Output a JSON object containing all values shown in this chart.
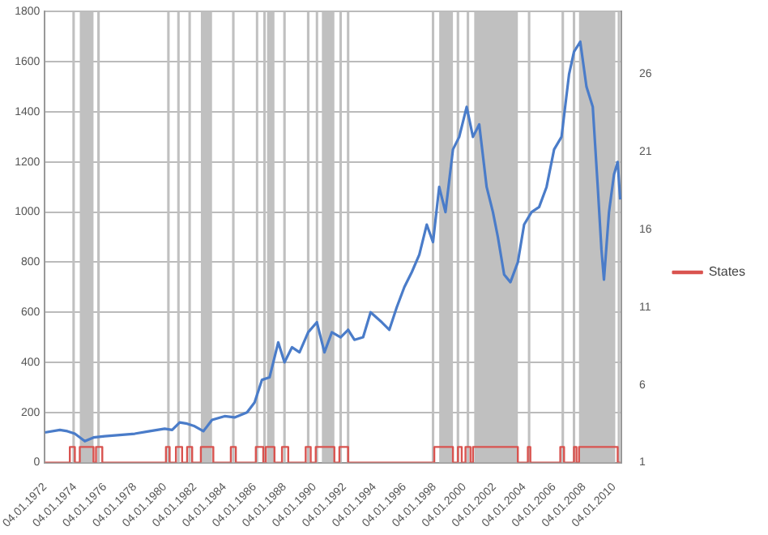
{
  "chart_data": {
    "type": "line",
    "xlim": [
      "1972-01",
      "2010-07"
    ],
    "xticks": [
      {
        "value": "1972-01-04",
        "label": "04.01.1972"
      },
      {
        "value": "1974-01-04",
        "label": "04.01.1974"
      },
      {
        "value": "1976-01-04",
        "label": "04.01.1976"
      },
      {
        "value": "1978-01-04",
        "label": "04.01.1978"
      },
      {
        "value": "1980-01-04",
        "label": "04.01.1980"
      },
      {
        "value": "1982-01-04",
        "label": "04.01.1982"
      },
      {
        "value": "1984-01-04",
        "label": "04.01.1984"
      },
      {
        "value": "1986-01-04",
        "label": "04.01.1986"
      },
      {
        "value": "1988-01-04",
        "label": "04.01.1988"
      },
      {
        "value": "1990-01-04",
        "label": "04.01.1990"
      },
      {
        "value": "1992-01-04",
        "label": "04.01.1992"
      },
      {
        "value": "1994-01-04",
        "label": "04.01.1994"
      },
      {
        "value": "1996-01-04",
        "label": "04.01.1996"
      },
      {
        "value": "1998-01-04",
        "label": "04.01.1998"
      },
      {
        "value": "2000-01-04",
        "label": "04.01.2000"
      },
      {
        "value": "2002-01-04",
        "label": "04.01.2002"
      },
      {
        "value": "2004-01-04",
        "label": "04.01.2004"
      },
      {
        "value": "2006-01-04",
        "label": "04.01.2006"
      },
      {
        "value": "2008-01-04",
        "label": "04.01.2008"
      },
      {
        "value": "2010-01-04",
        "label": "04.01.2010"
      }
    ],
    "ylim": [
      0,
      1800
    ],
    "yticks": [
      0,
      200,
      400,
      600,
      800,
      1000,
      1200,
      1400,
      1600,
      1800
    ],
    "y2lim": [
      1,
      30
    ],
    "y2ticks": [
      1,
      6,
      11,
      16,
      21,
      26
    ],
    "grid": "y",
    "legend": "right",
    "marker": "none",
    "line_style": "solid",
    "series": [
      {
        "color": "#4a7cc9",
        "x": [
          "1972-01",
          "1973-01",
          "1973-07",
          "1974-01",
          "1974-09",
          "1975-04",
          "1976-01",
          "1977-01",
          "1978-01",
          "1979-01",
          "1980-01",
          "1980-07",
          "1981-01",
          "1981-07",
          "1982-01",
          "1982-08",
          "1983-03",
          "1984-01",
          "1984-09",
          "1985-07",
          "1986-01",
          "1986-07",
          "1987-01",
          "1987-08",
          "1988-01",
          "1988-07",
          "1989-01",
          "1989-08",
          "1990-03",
          "1990-09",
          "1991-03",
          "1991-10",
          "1992-04",
          "1992-09",
          "1993-04",
          "1993-10",
          "1994-07",
          "1995-01",
          "1995-07",
          "1996-01",
          "1996-07",
          "1997-01",
          "1997-07",
          "1997-12",
          "1998-05",
          "1998-10",
          "1999-04",
          "1999-09",
          "2000-03",
          "2000-08",
          "2001-01",
          "2001-07",
          "2001-12",
          "2002-04",
          "2002-09",
          "2003-02",
          "2003-08",
          "2004-01",
          "2004-07",
          "2005-01",
          "2005-07",
          "2006-01",
          "2006-07",
          "2007-01",
          "2007-05",
          "2007-10",
          "2008-03",
          "2008-08",
          "2008-12",
          "2009-03",
          "2009-05",
          "2009-09",
          "2010-01",
          "2010-04",
          "2010-06"
        ],
        "values": [
          120,
          130,
          125,
          115,
          85,
          100,
          105,
          110,
          115,
          125,
          135,
          130,
          160,
          155,
          145,
          125,
          170,
          185,
          180,
          200,
          240,
          330,
          340,
          480,
          400,
          460,
          440,
          520,
          560,
          440,
          520,
          500,
          530,
          490,
          500,
          600,
          560,
          530,
          620,
          700,
          760,
          830,
          950,
          880,
          1100,
          1000,
          1250,
          1300,
          1420,
          1300,
          1350,
          1100,
          1000,
          900,
          750,
          720,
          800,
          950,
          1000,
          1020,
          1100,
          1250,
          1300,
          1550,
          1640,
          1680,
          1500,
          1420,
          1100,
          850,
          730,
          1000,
          1150,
          1200,
          1050
        ]
      },
      {
        "name": "States",
        "type": "step",
        "axis": "y2",
        "color": "#d9534f",
        "x": [
          "1972-01",
          "1973-09",
          "1974-01",
          "1974-05",
          "1975-04",
          "1975-06",
          "1975-11",
          "1980-02",
          "1980-05",
          "1980-10",
          "1981-03",
          "1981-07",
          "1981-11",
          "1982-06",
          "1983-04",
          "1984-06",
          "1984-10",
          "1986-02",
          "1986-08",
          "1986-10",
          "1987-05",
          "1987-11",
          "1988-04",
          "1989-06",
          "1989-10",
          "1990-02",
          "1991-05",
          "1991-09",
          "1992-04",
          "1998-01",
          "1999-04",
          "1999-08",
          "1999-11",
          "2000-02",
          "2000-06",
          "2000-08",
          "2003-08",
          "2004-04",
          "2004-06",
          "2006-06",
          "2006-09",
          "2007-05",
          "2007-07",
          "2007-09",
          "2010-04",
          "2010-06"
        ],
        "values": [
          1,
          2,
          1,
          2,
          1,
          2,
          1,
          2,
          1,
          2,
          1,
          2,
          1,
          2,
          1,
          2,
          1,
          2,
          1,
          2,
          1,
          2,
          1,
          2,
          1,
          2,
          1,
          2,
          1,
          2,
          1,
          2,
          1,
          2,
          1,
          2,
          1,
          2,
          1,
          2,
          1,
          2,
          1,
          2,
          1,
          1
        ]
      }
    ],
    "bands": [
      {
        "axis": "x",
        "from": "1973-11",
        "to": "1974-01",
        "color": "#c0c0c0"
      },
      {
        "axis": "x",
        "from": "1974-05",
        "to": "1975-04",
        "color": "#c0c0c0"
      },
      {
        "axis": "x",
        "from": "1975-07",
        "to": "1975-09",
        "color": "#c0c0c0"
      },
      {
        "axis": "x",
        "from": "1980-03",
        "to": "1980-05",
        "color": "#c0c0c0"
      },
      {
        "axis": "x",
        "from": "1980-11",
        "to": "1981-01",
        "color": "#c0c0c0"
      },
      {
        "axis": "x",
        "from": "1981-08",
        "to": "1981-10",
        "color": "#c0c0c0"
      },
      {
        "axis": "x",
        "from": "1982-06",
        "to": "1983-03",
        "color": "#c0c0c0"
      },
      {
        "axis": "x",
        "from": "1984-07",
        "to": "1984-09",
        "color": "#c0c0c0"
      },
      {
        "axis": "x",
        "from": "1986-02",
        "to": "1986-04",
        "color": "#c0c0c0"
      },
      {
        "axis": "x",
        "from": "1986-08",
        "to": "1986-10",
        "color": "#c0c0c0"
      },
      {
        "axis": "x",
        "from": "1986-11",
        "to": "1987-05",
        "color": "#c0c0c0"
      },
      {
        "axis": "x",
        "from": "1987-12",
        "to": "1988-02",
        "color": "#c0c0c0"
      },
      {
        "axis": "x",
        "from": "1989-07",
        "to": "1989-09",
        "color": "#c0c0c0"
      },
      {
        "axis": "x",
        "from": "1990-02",
        "to": "1990-04",
        "color": "#c0c0c0"
      },
      {
        "axis": "x",
        "from": "1990-07",
        "to": "1991-05",
        "color": "#c0c0c0"
      },
      {
        "axis": "x",
        "from": "1991-09",
        "to": "1991-11",
        "color": "#c0c0c0"
      },
      {
        "axis": "x",
        "from": "1992-03",
        "to": "1992-05",
        "color": "#c0c0c0"
      },
      {
        "axis": "x",
        "from": "1997-11",
        "to": "1998-01",
        "color": "#c0c0c0"
      },
      {
        "axis": "x",
        "from": "1998-05",
        "to": "1999-04",
        "color": "#c0c0c0"
      },
      {
        "axis": "x",
        "from": "1999-07",
        "to": "1999-09",
        "color": "#c0c0c0"
      },
      {
        "axis": "x",
        "from": "2000-03",
        "to": "2000-05",
        "color": "#c0c0c0"
      },
      {
        "axis": "x",
        "from": "2000-09",
        "to": "2003-08",
        "color": "#c0c0c0"
      },
      {
        "axis": "x",
        "from": "2004-04",
        "to": "2004-06",
        "color": "#c0c0c0"
      },
      {
        "axis": "x",
        "from": "2006-07",
        "to": "2006-09",
        "color": "#c0c0c0"
      },
      {
        "axis": "x",
        "from": "2007-04",
        "to": "2007-06",
        "color": "#c0c0c0"
      },
      {
        "axis": "x",
        "from": "2007-09",
        "to": "2010-02",
        "color": "#c0c0c0"
      },
      {
        "axis": "x",
        "from": "2010-04",
        "to": "2010-06",
        "color": "#c0c0c0"
      }
    ]
  }
}
